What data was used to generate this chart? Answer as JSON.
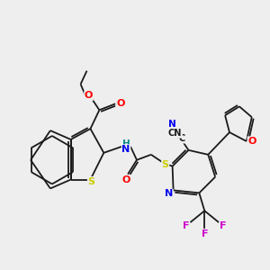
{
  "background_color": "#eeeeee",
  "bond_color": "#1a1a1a",
  "atom_colors": {
    "O": "#ff0000",
    "N": "#0000ee",
    "S": "#cccc00",
    "F": "#cc00cc",
    "H": "#008888",
    "C": "#1a1a1a"
  },
  "figsize": [
    3.0,
    3.0
  ],
  "dpi": 100,
  "lw": 1.3,
  "fontsize": 7.5
}
